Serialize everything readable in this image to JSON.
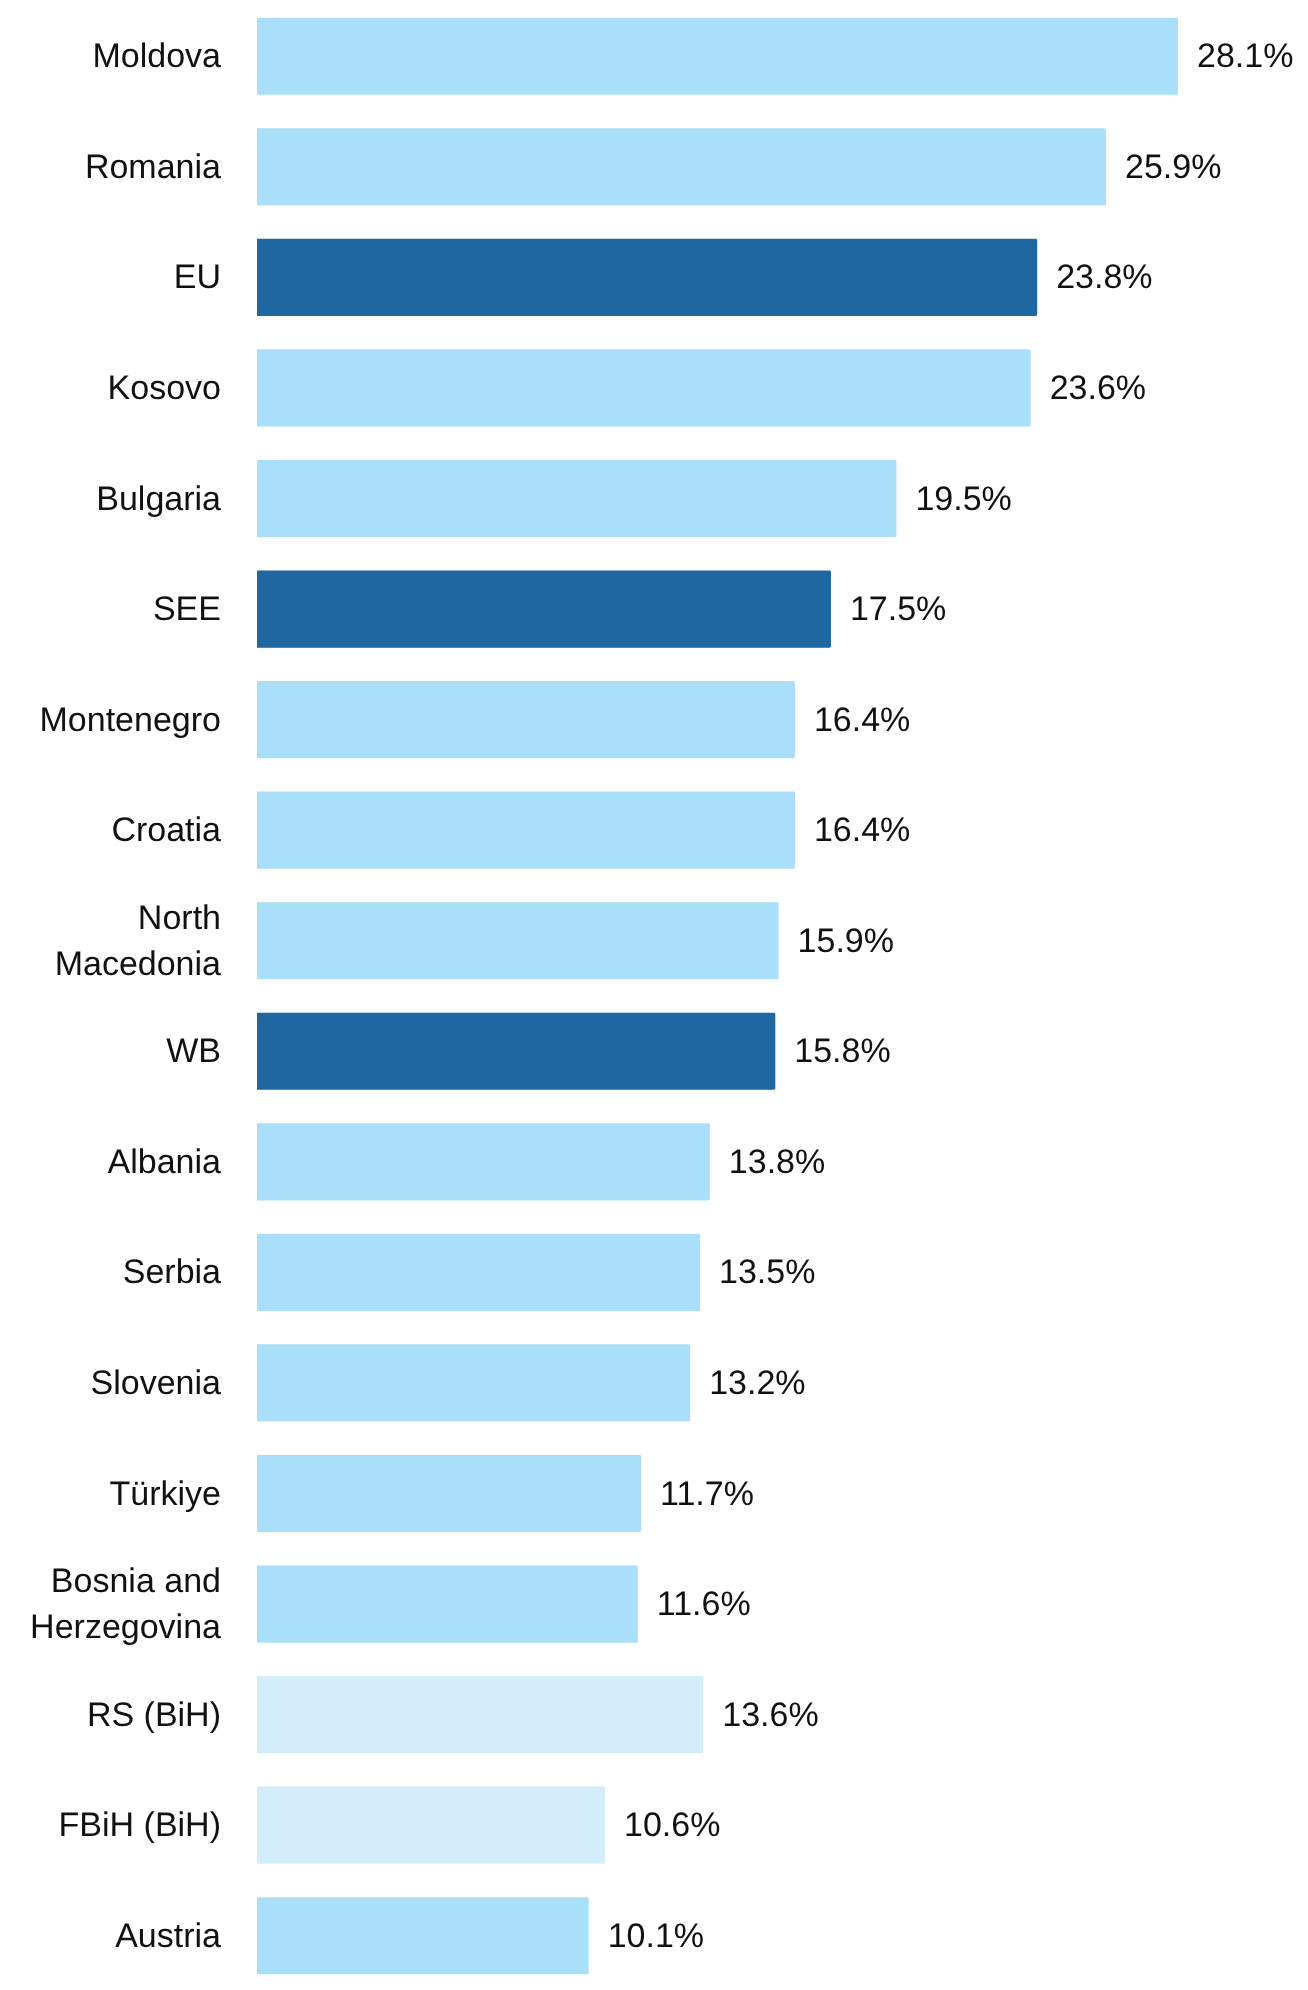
{
  "chart_data": {
    "type": "bar",
    "orientation": "horizontal",
    "categories": [
      "Moldova",
      "Romania",
      "EU",
      "Kosovo",
      "Bulgaria",
      "SEE",
      "Montenegro",
      "Croatia",
      "North Macedonia",
      "WB",
      "Albania",
      "Serbia",
      "Slovenia",
      "Türkiye",
      "Bosnia and Herzegovina",
      "RS (BiH)",
      "FBiH (BiH)",
      "Austria"
    ],
    "values": [
      28.1,
      25.9,
      23.8,
      23.6,
      19.5,
      17.5,
      16.4,
      16.4,
      15.9,
      15.8,
      13.8,
      13.5,
      13.2,
      11.7,
      11.6,
      13.6,
      10.6,
      10.1
    ],
    "colors": [
      "#a9dff9",
      "#a9dff9",
      "#1f67a0",
      "#a9dff9",
      "#a9dff9",
      "#1f67a0",
      "#a9dff9",
      "#a9dff9",
      "#a9dff9",
      "#1f67a0",
      "#a9dff9",
      "#a9dff9",
      "#a9dff9",
      "#a9dff9",
      "#a9dff9",
      "#d3eefa",
      "#d3eefa",
      "#a9dff9"
    ],
    "value_labels": [
      "28.1%",
      "25.9%",
      "23.8%",
      "23.6%",
      "19.5%",
      "17.5%",
      "16.4%",
      "16.4%",
      "15.9%",
      "15.8%",
      "13.8%",
      "13.5%",
      "13.2%",
      "11.7%",
      "11.6%",
      "13.6%",
      "10.6%",
      "10.1%"
    ],
    "tick_labels": "y",
    "grid": false
  }
}
